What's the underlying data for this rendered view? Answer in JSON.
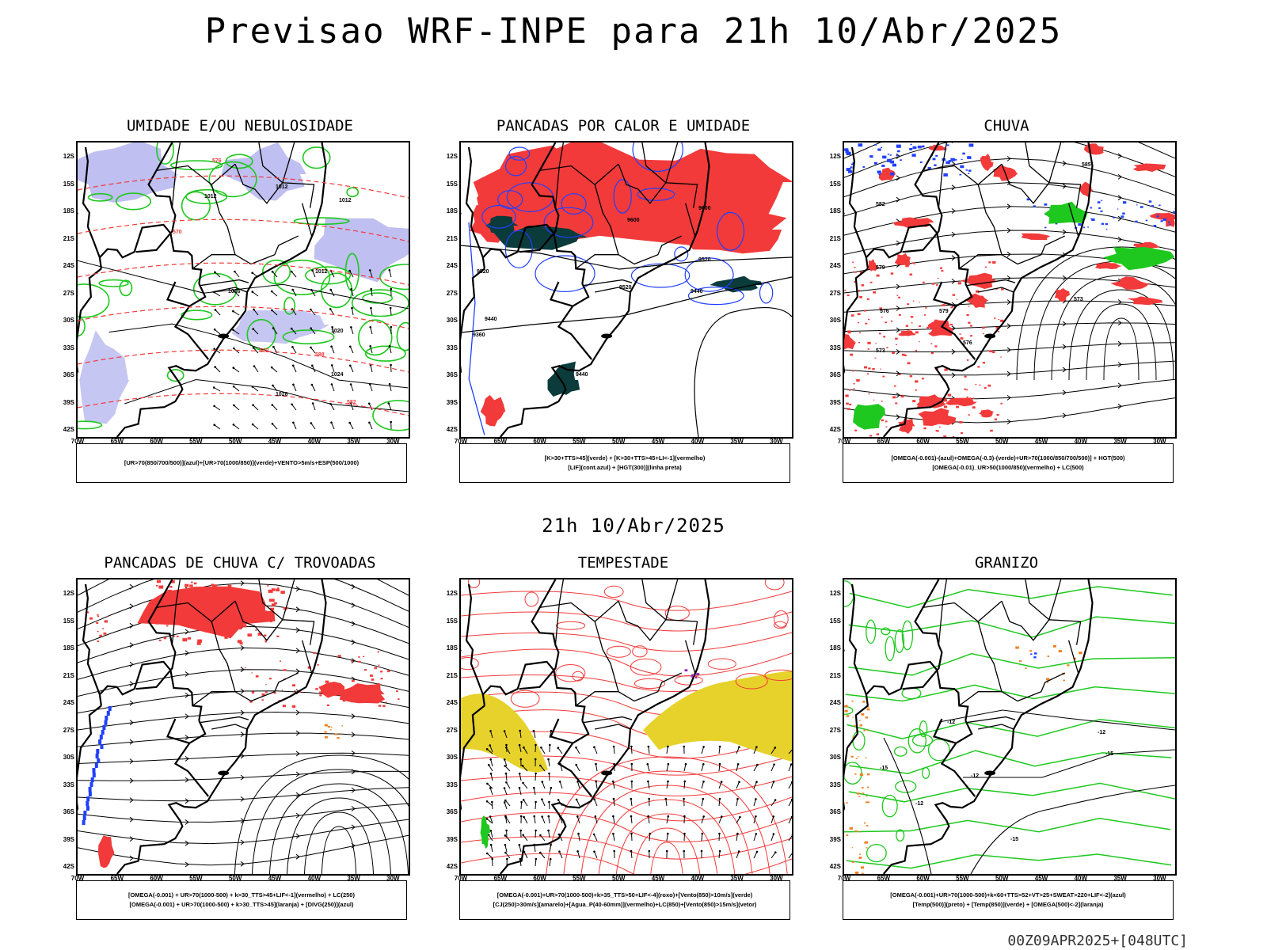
{
  "header": {
    "title": "Previsao WRF-INPE  para 21h 10/Abr/2025",
    "mid_title": "21h 10/Abr/2025",
    "footer_code": "00Z09APR2025+[048UTC]"
  },
  "axes": {
    "lat_labels": [
      "12S",
      "15S",
      "18S",
      "21S",
      "24S",
      "27S",
      "30S",
      "33S",
      "36S",
      "39S",
      "42S"
    ],
    "lon_labels": [
      "70W",
      "65W",
      "60W",
      "55W",
      "50W",
      "45W",
      "40W",
      "35W",
      "30W"
    ]
  },
  "colors": {
    "red": "#f23a3a",
    "green": "#1ec81e",
    "blue": "#2040ff",
    "lavender": "#b8b8f0",
    "darkteal": "#0b3b3b",
    "yellow": "#e6d22a",
    "orange": "#f08020",
    "black": "#000000"
  },
  "panels": [
    {
      "id": "umidade",
      "title": "UMIDADE E/OU NEBULOSIDADE",
      "legend": [
        "[UR>70(850/700/500)](azul)+[UR>70(1000/850)](verde)+VENTO>5m/s+ESP(500/1000)"
      ],
      "contour_labels": [
        "1012",
        "1012",
        "1012",
        "1012",
        "1016",
        "1020",
        "1024",
        "1028",
        "570",
        "576",
        "582",
        "588",
        "582"
      ]
    },
    {
      "id": "pancadas-calor",
      "title": "PANCADAS POR CALOR E UMIDADE",
      "legend": [
        "[K>30+TTS>45](verde)  +  [K>30+TTS>45+LI<-1](vermelho)",
        "[LIF](cont.azul)  +  [HGT(300)](linha preta)"
      ],
      "contour_labels": [
        "9600",
        "9600",
        "9520",
        "9520",
        "9520",
        "9440",
        "9440",
        "9360",
        "9440"
      ]
    },
    {
      "id": "chuva",
      "title": "CHUVA",
      "legend": [
        "[OMEGA(-0.001)-(azul)+OMEGA(-0.3)-(verde)+UR>70(1000/850/700/500)]  +  HGT(500)",
        "[OMEGA(-0.01)_UR>50(1000/850)(vermelho)  +  LC(500)"
      ],
      "contour_labels": [
        "585",
        "582",
        "579",
        "576",
        "573",
        "579",
        "576",
        "573"
      ]
    },
    {
      "id": "pancadas-trovoadas",
      "title": "PANCADAS DE CHUVA C/ TROVOADAS",
      "legend": [
        "[OMEGA(-0.001)  +  UR>70(1000-500)  +  k>30_TTS>45+LIF<-1](vermelho)  +  LC(250)",
        "[OMEGA(-0.001)  +  UR>70(1000-500)  +  k>30_TTS>45](laranja)  +  [DIVG(250)](azul)"
      ],
      "contour_labels": []
    },
    {
      "id": "tempestade",
      "title": "TEMPESTADE",
      "legend": [
        "[OMEGA(-0.001)+UR>70(1000-500)+k>35_TTS>50+LIF<-4](roxo)+[Vento(850)>10m/s](verde)",
        "[CJ(250)>30m/s](amarelo)+[Agua_P(40-60mm)](vermelho)+LC(850)+[Vento(850)>15m/s](vetor)"
      ],
      "contour_labels": []
    },
    {
      "id": "granizo",
      "title": "GRANIZO",
      "legend": [
        "[OMEGA(-0.001)+UR>70(1000-500)+k<60+TTS>52+VT>25+SWEAT>220+LIF<-2](azul)",
        "[Temp(500)](preto)  +  [Temp(850)](verde)  +  [OMEGA(500)<-2](laranja)"
      ],
      "contour_labels": [
        "-12",
        "-12",
        "-12",
        "-12",
        "-15",
        "-15",
        "-15"
      ]
    }
  ]
}
